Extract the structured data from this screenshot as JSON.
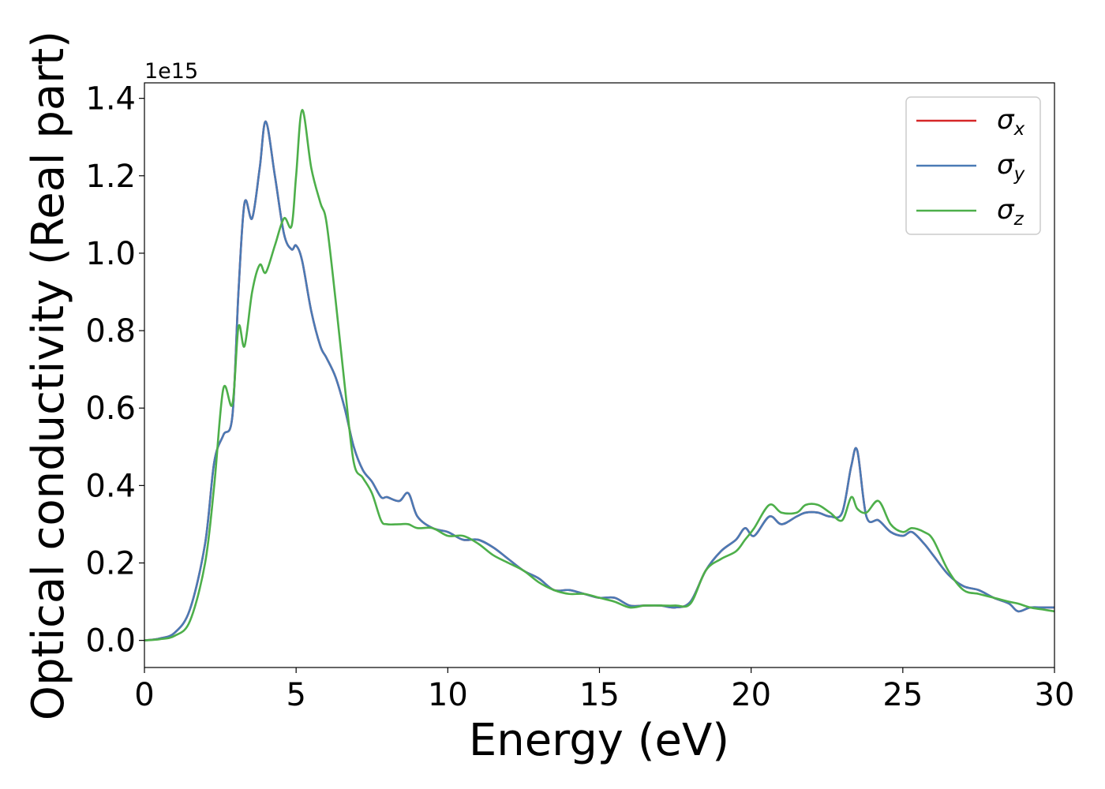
{
  "chart_data": {
    "type": "line",
    "xlabel": "Energy (eV)",
    "ylabel": "Optical conductivity (Real part)",
    "y_offset_label": "1e15",
    "xlim": [
      0,
      30
    ],
    "ylim": [
      -0.07,
      1.44
    ],
    "x_ticks": [
      0,
      5,
      10,
      15,
      20,
      25,
      30
    ],
    "x_tick_labels": [
      "0",
      "5",
      "10",
      "15",
      "20",
      "25",
      "30"
    ],
    "y_ticks": [
      0.0,
      0.2,
      0.4,
      0.6,
      0.8,
      1.0,
      1.2,
      1.4
    ],
    "y_tick_labels": [
      "0.0",
      "0.2",
      "0.4",
      "0.6",
      "0.8",
      "1.0",
      "1.2",
      "1.4"
    ],
    "grid": false,
    "legend_position": "top-right",
    "x": [
      0,
      0.5,
      1,
      1.5,
      2,
      2.3,
      2.6,
      2.9,
      3.1,
      3.3,
      3.55,
      3.8,
      4.0,
      4.3,
      4.6,
      4.85,
      5.0,
      5.2,
      5.5,
      5.8,
      6.0,
      6.3,
      6.6,
      6.9,
      7.2,
      7.5,
      7.8,
      8.0,
      8.4,
      8.7,
      9.0,
      9.5,
      10.0,
      10.5,
      11.0,
      11.5,
      12.0,
      12.5,
      13.0,
      13.5,
      14.0,
      14.5,
      15.0,
      15.5,
      16.0,
      16.5,
      17.0,
      17.5,
      18.0,
      18.5,
      19.0,
      19.5,
      19.8,
      20.1,
      20.6,
      21.0,
      21.5,
      21.8,
      22.2,
      22.6,
      23.0,
      23.3,
      23.5,
      23.8,
      24.2,
      24.6,
      25.0,
      25.3,
      25.7,
      26.0,
      26.5,
      27.0,
      27.5,
      28.0,
      28.5,
      28.8,
      29.2,
      29.6,
      30.0
    ],
    "series": [
      {
        "name": "σ_x",
        "color": "#d62728",
        "values": [
          0.0,
          0.005,
          0.02,
          0.08,
          0.25,
          0.46,
          0.53,
          0.58,
          0.9,
          1.13,
          1.09,
          1.22,
          1.34,
          1.2,
          1.05,
          1.01,
          1.02,
          0.98,
          0.85,
          0.76,
          0.73,
          0.68,
          0.6,
          0.5,
          0.44,
          0.41,
          0.37,
          0.37,
          0.36,
          0.38,
          0.32,
          0.29,
          0.28,
          0.26,
          0.26,
          0.24,
          0.21,
          0.18,
          0.16,
          0.13,
          0.13,
          0.12,
          0.11,
          0.11,
          0.09,
          0.09,
          0.09,
          0.085,
          0.1,
          0.18,
          0.23,
          0.26,
          0.29,
          0.27,
          0.32,
          0.3,
          0.32,
          0.33,
          0.33,
          0.32,
          0.33,
          0.45,
          0.49,
          0.32,
          0.31,
          0.28,
          0.27,
          0.28,
          0.25,
          0.22,
          0.17,
          0.14,
          0.13,
          0.11,
          0.095,
          0.075,
          0.085,
          0.085,
          0.085
        ]
      },
      {
        "name": "σ_y",
        "color": "#4a7ab5",
        "values": [
          0.0,
          0.005,
          0.02,
          0.08,
          0.25,
          0.46,
          0.53,
          0.58,
          0.9,
          1.13,
          1.09,
          1.22,
          1.34,
          1.2,
          1.05,
          1.01,
          1.02,
          0.98,
          0.85,
          0.76,
          0.73,
          0.68,
          0.6,
          0.5,
          0.44,
          0.41,
          0.37,
          0.37,
          0.36,
          0.38,
          0.32,
          0.29,
          0.28,
          0.26,
          0.26,
          0.24,
          0.21,
          0.18,
          0.16,
          0.13,
          0.13,
          0.12,
          0.11,
          0.11,
          0.09,
          0.09,
          0.09,
          0.085,
          0.1,
          0.18,
          0.23,
          0.26,
          0.29,
          0.27,
          0.32,
          0.3,
          0.32,
          0.33,
          0.33,
          0.32,
          0.33,
          0.45,
          0.49,
          0.32,
          0.31,
          0.28,
          0.27,
          0.28,
          0.25,
          0.22,
          0.17,
          0.14,
          0.13,
          0.11,
          0.095,
          0.075,
          0.085,
          0.085,
          0.085
        ]
      },
      {
        "name": "σ_z",
        "color": "#4daf4a",
        "values": [
          0.0,
          0.003,
          0.012,
          0.05,
          0.2,
          0.4,
          0.65,
          0.61,
          0.81,
          0.76,
          0.9,
          0.97,
          0.95,
          1.02,
          1.09,
          1.07,
          1.2,
          1.37,
          1.22,
          1.13,
          1.08,
          0.88,
          0.66,
          0.46,
          0.42,
          0.38,
          0.31,
          0.3,
          0.3,
          0.3,
          0.29,
          0.29,
          0.27,
          0.27,
          0.25,
          0.22,
          0.2,
          0.18,
          0.15,
          0.13,
          0.12,
          0.12,
          0.11,
          0.1,
          0.085,
          0.09,
          0.09,
          0.09,
          0.095,
          0.18,
          0.21,
          0.23,
          0.26,
          0.29,
          0.35,
          0.33,
          0.33,
          0.35,
          0.35,
          0.33,
          0.31,
          0.37,
          0.34,
          0.33,
          0.36,
          0.3,
          0.28,
          0.29,
          0.28,
          0.26,
          0.18,
          0.13,
          0.12,
          0.11,
          0.1,
          0.095,
          0.085,
          0.08,
          0.075
        ]
      }
    ]
  }
}
